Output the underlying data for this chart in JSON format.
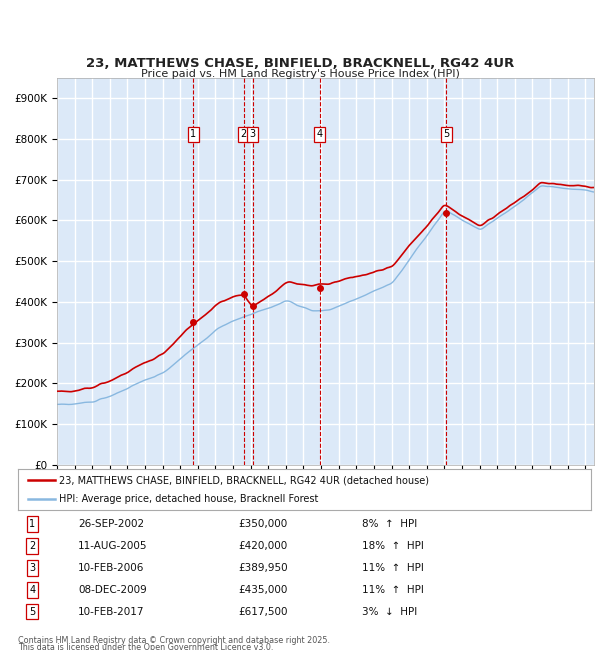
{
  "title": "23, MATTHEWS CHASE, BINFIELD, BRACKNELL, RG42 4UR",
  "subtitle": "Price paid vs. HM Land Registry's House Price Index (HPI)",
  "ylim": [
    0,
    950000
  ],
  "yticks": [
    0,
    100000,
    200000,
    300000,
    400000,
    500000,
    600000,
    700000,
    800000,
    900000
  ],
  "ytick_labels": [
    "£0",
    "£100K",
    "£200K",
    "£300K",
    "£400K",
    "£500K",
    "£600K",
    "£700K",
    "£800K",
    "£900K"
  ],
  "plot_bg_color": "#dce9f8",
  "grid_color": "#ffffff",
  "line1_color": "#cc0000",
  "line2_color": "#89b8e0",
  "transactions": [
    {
      "num": 1,
      "date": "26-SEP-2002",
      "price": 350000,
      "year": 2002.73,
      "pct": "8%",
      "dir": "↑"
    },
    {
      "num": 2,
      "date": "11-AUG-2005",
      "price": 420000,
      "year": 2005.6,
      "pct": "18%",
      "dir": "↑"
    },
    {
      "num": 3,
      "date": "10-FEB-2006",
      "price": 389950,
      "year": 2006.11,
      "pct": "11%",
      "dir": "↑"
    },
    {
      "num": 4,
      "date": "08-DEC-2009",
      "price": 435000,
      "year": 2009.93,
      "pct": "11%",
      "dir": "↑"
    },
    {
      "num": 5,
      "date": "10-FEB-2017",
      "price": 617500,
      "year": 2017.11,
      "pct": "3%",
      "dir": "↓"
    }
  ],
  "legend_line1": "23, MATTHEWS CHASE, BINFIELD, BRACKNELL, RG42 4UR (detached house)",
  "legend_line2": "HPI: Average price, detached house, Bracknell Forest",
  "footer1": "Contains HM Land Registry data © Crown copyright and database right 2025.",
  "footer2": "This data is licensed under the Open Government Licence v3.0."
}
